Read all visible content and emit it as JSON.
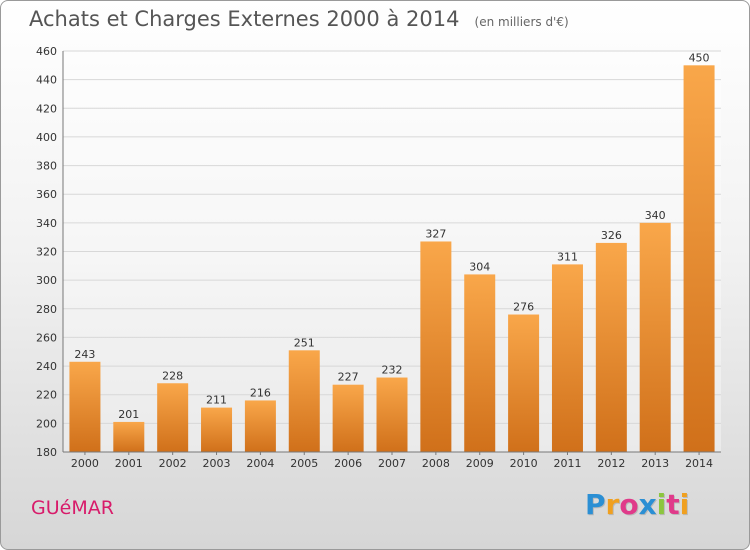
{
  "title": "Achats et Charges Externes 2000 à 2014",
  "subtitle": "(en milliers d'€)",
  "location": "GUéMAR",
  "brand": {
    "letters": [
      "P",
      "r",
      "o",
      "x",
      "i",
      "t",
      "i"
    ],
    "colors": [
      "#2b8fd4",
      "#f0a020",
      "#e03a8a",
      "#2b8fd4",
      "#8cc63f",
      "#e03a8a",
      "#f0a020"
    ]
  },
  "colors": {
    "bar_top": "#f9a74a",
    "bar_bottom": "#d0701a",
    "grid": "#d8d8d8",
    "axis_text": "#333333"
  },
  "chart_data": {
    "type": "bar",
    "categories": [
      "2000",
      "2001",
      "2002",
      "2003",
      "2004",
      "2005",
      "2006",
      "2007",
      "2008",
      "2009",
      "2010",
      "2011",
      "2012",
      "2013",
      "2014"
    ],
    "values": [
      243,
      201,
      228,
      211,
      216,
      251,
      227,
      232,
      327,
      304,
      276,
      311,
      326,
      340,
      450
    ],
    "ylim": [
      180,
      460
    ],
    "yticks": [
      180,
      200,
      220,
      240,
      260,
      280,
      300,
      320,
      340,
      360,
      380,
      400,
      420,
      440,
      460
    ],
    "grid": true,
    "legend": "none"
  }
}
